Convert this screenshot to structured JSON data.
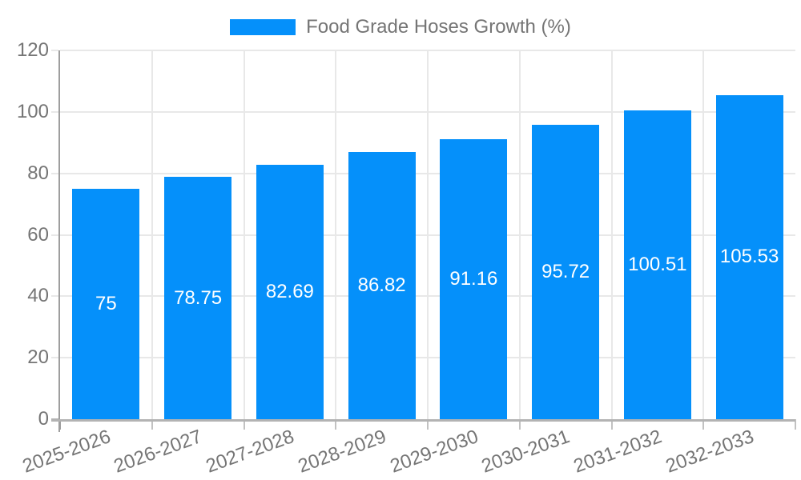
{
  "chart_data": {
    "type": "bar",
    "title": "Food Grade Hoses Growth (%)",
    "categories": [
      "2025-2026",
      "2026-2027",
      "2027-2028",
      "2028-2029",
      "2029-2030",
      "2030-2031",
      "2031-2032",
      "2032-2033"
    ],
    "values": [
      75,
      78.75,
      82.69,
      86.82,
      91.16,
      95.72,
      100.51,
      105.53
    ],
    "data_labels": [
      "75",
      "78.75",
      "82.69",
      "86.82",
      "91.16",
      "95.72",
      "100.51",
      "105.53"
    ],
    "xlabel": "",
    "ylabel": "",
    "ylim": [
      0,
      120
    ],
    "yticks": [
      0,
      20,
      40,
      60,
      80,
      100,
      120
    ],
    "legend_position": "top",
    "grid": true,
    "x_label_rotation_deg": -20,
    "colors": {
      "bar": "#0590fa",
      "bar_value_label": "#ffffff",
      "axis_text": "#757575",
      "gridline": "#e8e8e8",
      "y_axis_line": "#9e9e9e",
      "x_axis_line": "#b3b3b3",
      "x_tick": "#c2c2c2",
      "background": "#ffffff"
    }
  }
}
